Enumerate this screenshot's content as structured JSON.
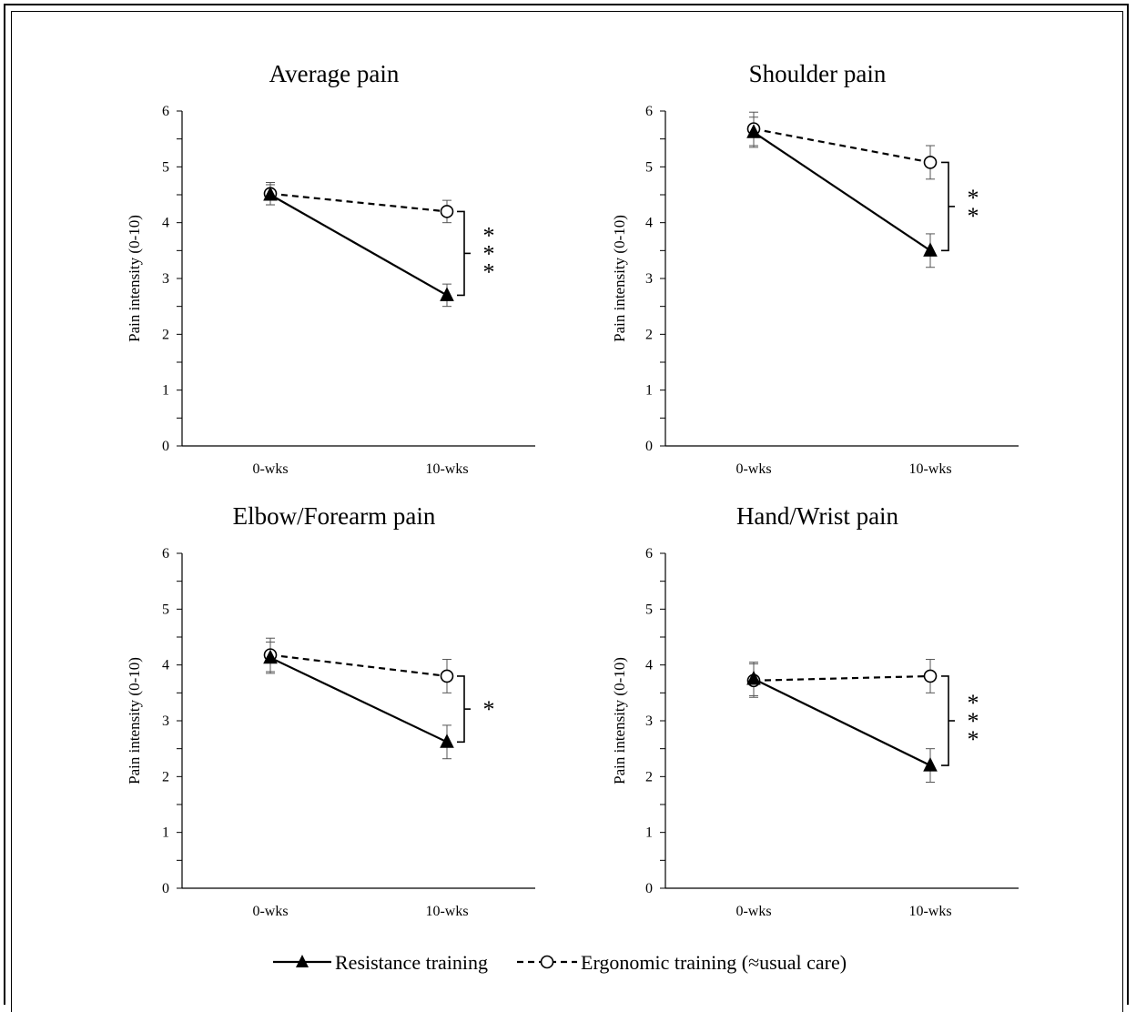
{
  "chart_data": [
    {
      "type": "line",
      "title": "Average pain",
      "ylabel": "Pain intensity (0-10)",
      "categories": [
        "0-wks",
        "10-wks"
      ],
      "ylim": [
        0,
        6
      ],
      "yticks": [
        "0",
        "1",
        "2",
        "3",
        "4",
        "5",
        "6"
      ],
      "series": [
        {
          "name": "Resistance training",
          "values": [
            4.5,
            2.7
          ],
          "error": [
            0.18,
            0.2
          ]
        },
        {
          "name": "Ergonomic training (≈usual care)",
          "values": [
            4.52,
            4.2
          ],
          "error": [
            0.2,
            0.2
          ]
        }
      ],
      "significance": {
        "label": "***",
        "from": 4.2,
        "to": 2.7
      }
    },
    {
      "type": "line",
      "title": "Shoulder pain",
      "ylabel": "Pain intensity (0-10)",
      "categories": [
        "0-wks",
        "10-wks"
      ],
      "ylim": [
        0,
        6
      ],
      "yticks": [
        "0",
        "1",
        "2",
        "3",
        "4",
        "5",
        "6"
      ],
      "series": [
        {
          "name": "Resistance training",
          "values": [
            5.62,
            3.5
          ],
          "error": [
            0.27,
            0.3
          ]
        },
        {
          "name": "Ergonomic training (≈usual care)",
          "values": [
            5.68,
            5.08
          ],
          "error": [
            0.3,
            0.3
          ]
        }
      ],
      "significance": {
        "label": "**",
        "from": 5.08,
        "to": 3.5
      }
    },
    {
      "type": "line",
      "title": "Elbow/Forearm pain",
      "ylabel": "Pain intensity (0-10)",
      "categories": [
        "0-wks",
        "10-wks"
      ],
      "ylim": [
        0,
        6
      ],
      "yticks": [
        "0",
        "1",
        "2",
        "3",
        "4",
        "5",
        "6"
      ],
      "series": [
        {
          "name": "Resistance training",
          "values": [
            4.13,
            2.62
          ],
          "error": [
            0.28,
            0.3
          ]
        },
        {
          "name": "Ergonomic training (≈usual care)",
          "values": [
            4.18,
            3.8
          ],
          "error": [
            0.3,
            0.3
          ]
        }
      ],
      "significance": {
        "label": "*",
        "from": 3.8,
        "to": 2.62
      }
    },
    {
      "type": "line",
      "title": "Hand/Wrist pain",
      "ylabel": "Pain intensity (0-10)",
      "categories": [
        "0-wks",
        "10-wks"
      ],
      "ylim": [
        0,
        6
      ],
      "yticks": [
        "0",
        "1",
        "2",
        "3",
        "4",
        "5",
        "6"
      ],
      "series": [
        {
          "name": "Resistance training",
          "values": [
            3.75,
            2.2
          ],
          "error": [
            0.3,
            0.3
          ]
        },
        {
          "name": "Ergonomic training (≈usual care)",
          "values": [
            3.72,
            3.8
          ],
          "error": [
            0.3,
            0.3
          ]
        }
      ],
      "significance": {
        "label": "***",
        "from": 3.8,
        "to": 2.2
      }
    }
  ],
  "legend": {
    "placement": "bottom-center",
    "items": [
      {
        "label": "Resistance training",
        "line": "solid",
        "marker": "filled-triangle"
      },
      {
        "label": "Ergonomic training (≈usual care)",
        "line": "dashed",
        "marker": "open-circle"
      }
    ]
  },
  "colors": {
    "ink": "#000000",
    "background": "#ffffff",
    "error_bar": "#555555"
  }
}
